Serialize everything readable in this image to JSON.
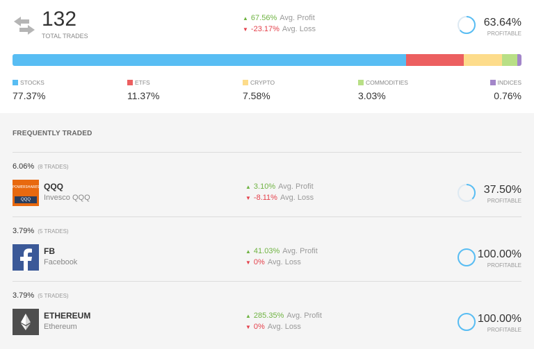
{
  "summary": {
    "total_trades": "132",
    "total_label": "TOTAL TRADES",
    "avg_profit_value": "67.56%",
    "avg_profit_label": "Avg. Profit",
    "avg_loss_value": "-23.17%",
    "avg_loss_label": "Avg. Loss",
    "profitable_pct": "63.64%",
    "profitable_fraction": 0.6364,
    "profitable_label": "PROFITABLE"
  },
  "allocation": [
    {
      "name": "STOCKS",
      "pct": "77.37%",
      "value": 77.37,
      "color": "#58bdf3"
    },
    {
      "name": "ETFS",
      "pct": "11.37%",
      "value": 11.37,
      "color": "#ec5f60"
    },
    {
      "name": "CRYPTO",
      "pct": "7.58%",
      "value": 7.58,
      "color": "#fddc8b"
    },
    {
      "name": "COMMODITIES",
      "pct": "3.03%",
      "value": 3.03,
      "color": "#b8df86"
    },
    {
      "name": "INDICES",
      "pct": "0.76%",
      "value": 0.76,
      "color": "#a386c9"
    }
  ],
  "frequently_traded": {
    "title": "FREQUENTLY TRADED",
    "items": [
      {
        "share": "6.06%",
        "trades": "(8 TRADES)",
        "ticker": "QQQ",
        "name": "Invesco QQQ",
        "logo_icon": "invesco-qqq-logo",
        "logo_text_top": "POWERSHARES",
        "logo_text_bottom": "QQQ",
        "avg_profit": "3.10%",
        "avg_profit_label": "Avg. Profit",
        "avg_loss": "-8.11%",
        "avg_loss_label": "Avg. Loss",
        "profitable_pct": "37.50%",
        "profitable_fraction": 0.375,
        "profitable_label": "PROFITABLE"
      },
      {
        "share": "3.79%",
        "trades": "(5 TRADES)",
        "ticker": "FB",
        "name": "Facebook",
        "logo_icon": "facebook-logo",
        "avg_profit": "41.03%",
        "avg_profit_label": "Avg. Profit",
        "avg_loss": "0%",
        "avg_loss_label": "Avg. Loss",
        "profitable_pct": "100.00%",
        "profitable_fraction": 1.0,
        "profitable_label": "PROFITABLE"
      },
      {
        "share": "3.79%",
        "trades": "(5 TRADES)",
        "ticker": "ETHEREUM",
        "name": "Ethereum",
        "logo_icon": "ethereum-logo",
        "avg_profit": "285.35%",
        "avg_profit_label": "Avg. Profit",
        "avg_loss": "0%",
        "avg_loss_label": "Avg. Loss",
        "profitable_pct": "100.00%",
        "profitable_fraction": 1.0,
        "profitable_label": "PROFITABLE"
      }
    ]
  }
}
